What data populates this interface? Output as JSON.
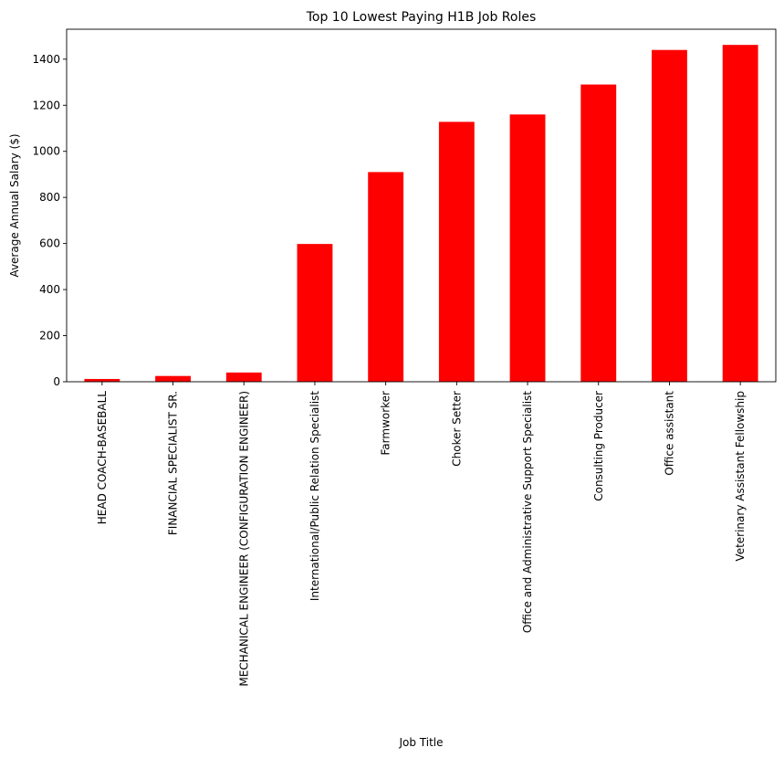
{
  "chart_data": {
    "type": "bar",
    "title": "Top 10 Lowest Paying H1B Job Roles",
    "xlabel": "Job Title",
    "ylabel": "Average Annual Salary ($)",
    "categories": [
      "HEAD COACH-BASEBALL",
      "FINANCIAL SPECIALIST SR.",
      "MECHANICAL ENGINEER (CONFIGURATION ENGINEER)",
      "International/Public Relation Specialist",
      "Farmworker",
      "Choker Setter",
      "Office and Administrative Support Specialist",
      "Consulting Producer",
      "Office assistant",
      "Veterinary Assistant Fellowship"
    ],
    "values": [
      12,
      25,
      40,
      598,
      910,
      1128,
      1160,
      1290,
      1440,
      1462
    ],
    "ylim": [
      0,
      1530
    ],
    "yticks": [
      0,
      200,
      400,
      600,
      800,
      1000,
      1200,
      1400
    ],
    "bar_color": "#ff0000",
    "grid": false,
    "legend": "none"
  }
}
